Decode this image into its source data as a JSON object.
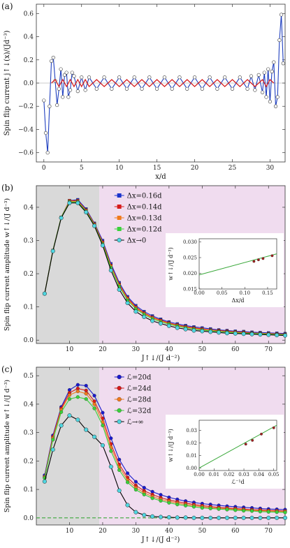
{
  "panel_labels": [
    "(a)",
    "(b)",
    "(c)"
  ],
  "chart_data": [
    {
      "type": "line",
      "panel": "(a)",
      "xlabel": "x/d",
      "ylabel": "Spin flip current  j↑↓(x)/(Jd⁻³)",
      "xlim": [
        -1,
        32
      ],
      "ylim": [
        -0.68,
        0.68
      ],
      "xticks": [
        0,
        5,
        10,
        15,
        20,
        25,
        30
      ],
      "yticks": [
        -0.6,
        -0.4,
        -0.2,
        0.0,
        0.2,
        0.4,
        0.6
      ],
      "ytick_labels": [
        "−0.6",
        "−0.4",
        "−0.2",
        "0.0",
        "0.2",
        "0.4",
        "0.6"
      ],
      "series": [
        {
          "color": "#1f3fbf",
          "marker": "open-circle",
          "x": [
            0.0,
            0.25,
            0.5,
            0.75,
            1.0,
            1.25,
            1.5,
            1.75,
            2.0,
            2.25,
            2.5,
            2.75,
            3.0,
            3.25,
            3.5,
            3.75,
            4.0,
            4.5,
            5.0,
            5.5,
            6.0,
            7.0,
            8.0,
            9.0,
            10.0,
            11.0,
            12.0,
            13.0,
            14.0,
            15.0,
            16.0,
            17.0,
            18.0,
            19.0,
            20.0,
            21.0,
            22.0,
            23.0,
            24.0,
            25.0,
            26.0,
            27.0,
            27.5,
            28.0,
            28.5,
            29.0,
            29.25,
            29.5,
            29.75,
            30.0,
            30.25,
            30.5,
            30.75,
            31.0,
            31.25,
            31.5,
            31.75
          ],
          "y": [
            -0.15,
            -0.43,
            -0.6,
            -0.2,
            0.19,
            0.22,
            0.02,
            -0.19,
            -0.05,
            0.12,
            -0.12,
            0.07,
            0.09,
            -0.12,
            -0.06,
            0.09,
            0.06,
            -0.07,
            0.05,
            -0.06,
            0.05,
            -0.05,
            0.05,
            -0.05,
            0.05,
            -0.05,
            0.05,
            -0.05,
            0.05,
            -0.05,
            0.05,
            -0.05,
            0.05,
            -0.05,
            0.05,
            -0.05,
            0.05,
            -0.05,
            0.05,
            -0.05,
            0.05,
            -0.05,
            0.06,
            -0.06,
            0.07,
            -0.08,
            0.09,
            -0.12,
            0.12,
            -0.16,
            0.1,
            0.18,
            -0.2,
            -0.12,
            0.37,
            0.59,
            0.17
          ]
        },
        {
          "color": "#d62020",
          "marker": "none",
          "x": [
            1.0,
            1.5,
            2.0,
            2.5,
            3.0,
            3.5,
            4.0,
            4.5,
            5.0,
            5.5,
            6.0,
            7.0,
            8.0,
            9.0,
            10.0,
            11.0,
            12.0,
            13.0,
            14.0,
            15.0,
            16.0,
            17.0,
            18.0,
            19.0,
            20.0,
            21.0,
            22.0,
            23.0,
            24.0,
            25.0,
            26.0,
            27.0,
            28.0,
            29.0,
            29.5,
            30.0,
            30.5
          ],
          "y": [
            0.0,
            0.03,
            -0.03,
            0.03,
            -0.03,
            0.03,
            -0.03,
            0.03,
            -0.03,
            0.03,
            -0.03,
            0.03,
            -0.03,
            0.03,
            -0.03,
            0.03,
            -0.03,
            0.03,
            -0.03,
            0.03,
            -0.03,
            0.03,
            -0.03,
            0.03,
            -0.03,
            0.03,
            -0.03,
            0.03,
            -0.03,
            0.03,
            -0.03,
            0.03,
            -0.03,
            0.03,
            -0.03,
            0.03,
            0.0
          ]
        }
      ]
    },
    {
      "type": "line",
      "panel": "(b)",
      "xlabel": "J↑↓/(J d⁻²)",
      "ylabel": "Spin flip current amplitude  w↑↓/(J d⁻³)",
      "xlim": [
        0,
        75
      ],
      "ylim": [
        -0.01,
        0.465
      ],
      "xticks": [
        10,
        20,
        30,
        40,
        50,
        60,
        70
      ],
      "yticks": [
        0.0,
        0.1,
        0.2,
        0.3,
        0.4
      ],
      "ytick_labels": [
        "0.0",
        "0.1",
        "0.2",
        "0.3",
        "0.4"
      ],
      "shading": [
        {
          "x": [
            0,
            19
          ],
          "color": "#d9d9d9"
        },
        {
          "x": [
            19,
            75
          ],
          "color": "#f0dcef"
        }
      ],
      "legend": "top-center",
      "x": [
        2.5,
        5,
        7.5,
        10,
        12.5,
        15,
        17.5,
        20,
        22.5,
        25,
        27.5,
        30,
        32.5,
        35,
        37.5,
        40,
        42.5,
        45,
        47.5,
        50,
        52.5,
        55,
        57.5,
        60,
        62.5,
        65,
        67.5,
        70,
        72.5,
        75
      ],
      "series": [
        {
          "name": "Δx=0.16d",
          "color": "#1a33cc",
          "marker": "square",
          "values": [
            0.14,
            0.27,
            0.37,
            0.42,
            0.423,
            0.395,
            0.352,
            0.3,
            0.23,
            0.173,
            0.131,
            0.104,
            0.086,
            0.073,
            0.063,
            0.055,
            0.049,
            0.044,
            0.04,
            0.037,
            0.034,
            0.031,
            0.029,
            0.027,
            0.026,
            0.024,
            0.023,
            0.022,
            0.021,
            0.02
          ]
        },
        {
          "name": "Δx=0.14d",
          "color": "#d61a1a",
          "marker": "square",
          "values": [
            0.14,
            0.27,
            0.37,
            0.42,
            0.42,
            0.392,
            0.35,
            0.295,
            0.225,
            0.168,
            0.127,
            0.1,
            0.082,
            0.069,
            0.06,
            0.052,
            0.046,
            0.041,
            0.037,
            0.034,
            0.031,
            0.029,
            0.027,
            0.025,
            0.024,
            0.022,
            0.021,
            0.02,
            0.019,
            0.018
          ]
        },
        {
          "name": "Δx=0.13d",
          "color": "#f07a1a",
          "marker": "square",
          "values": [
            0.14,
            0.27,
            0.37,
            0.418,
            0.418,
            0.39,
            0.348,
            0.292,
            0.222,
            0.165,
            0.124,
            0.097,
            0.08,
            0.067,
            0.058,
            0.05,
            0.044,
            0.039,
            0.035,
            0.032,
            0.03,
            0.027,
            0.025,
            0.024,
            0.022,
            0.021,
            0.02,
            0.019,
            0.018,
            0.017
          ]
        },
        {
          "name": "Δx=0.12d",
          "color": "#3ad13a",
          "marker": "square",
          "values": [
            0.14,
            0.27,
            0.37,
            0.416,
            0.416,
            0.388,
            0.346,
            0.289,
            0.218,
            0.161,
            0.12,
            0.094,
            0.077,
            0.064,
            0.055,
            0.048,
            0.042,
            0.037,
            0.033,
            0.03,
            0.028,
            0.026,
            0.024,
            0.022,
            0.021,
            0.02,
            0.019,
            0.018,
            0.017,
            0.016
          ]
        },
        {
          "name": "Δx→0",
          "color": "#000000",
          "marker": "cyan-circle",
          "values": [
            0.14,
            0.268,
            0.368,
            0.413,
            0.413,
            0.385,
            0.344,
            0.285,
            0.21,
            0.152,
            0.112,
            0.086,
            0.07,
            0.058,
            0.05,
            0.043,
            0.037,
            0.033,
            0.029,
            0.027,
            0.025,
            0.023,
            0.021,
            0.02,
            0.019,
            0.018,
            0.017,
            0.016,
            0.015,
            0.014
          ]
        }
      ],
      "inset": {
        "type": "scatter",
        "xlabel": "Δx/d",
        "ylabel": "w↑↓/(J d⁻³)",
        "xlim": [
          0.0,
          0.17
        ],
        "ylim": [
          0.015,
          0.031
        ],
        "xticks": [
          0.0,
          0.05,
          0.1,
          0.15
        ],
        "xtick_labels": [
          "0.00",
          "0.05",
          "0.10",
          "0.15"
        ],
        "yticks": [
          0.015,
          0.02,
          0.025,
          0.03
        ],
        "ytick_labels": [
          "0.015",
          "0.020",
          "0.025",
          "0.030"
        ],
        "points": {
          "x": [
            0.12,
            0.13,
            0.14,
            0.16
          ],
          "y": [
            0.0238,
            0.0243,
            0.0247,
            0.0256
          ]
        },
        "fit": {
          "x": [
            0.0,
            0.17
          ],
          "y": [
            0.0195,
            0.0262
          ],
          "color": "#3aa83a"
        }
      }
    },
    {
      "type": "line",
      "panel": "(c)",
      "xlabel": "J↑↓/(J d⁻²)",
      "ylabel": "Spin flip current amplitude  w↑↓/(J d⁻³)",
      "xlim": [
        0,
        75
      ],
      "ylim": [
        -0.025,
        0.53
      ],
      "xticks": [
        10,
        20,
        30,
        40,
        50,
        60,
        70
      ],
      "yticks": [
        0.0,
        0.1,
        0.2,
        0.3,
        0.4,
        0.5
      ],
      "ytick_labels": [
        "0.0",
        "0.1",
        "0.2",
        "0.3",
        "0.4",
        "0.5"
      ],
      "shading": [
        {
          "x": [
            0,
            19
          ],
          "color": "#d9d9d9"
        },
        {
          "x": [
            19,
            75
          ],
          "color": "#f0dcef"
        }
      ],
      "legend": "top-center",
      "reference_line": {
        "y": 0.0,
        "color": "#3aa83a",
        "style": "dashed"
      },
      "x": [
        2.5,
        5,
        7.5,
        10,
        12.5,
        15,
        17.5,
        20,
        22.5,
        25,
        27.5,
        30,
        32.5,
        35,
        37.5,
        40,
        42.5,
        45,
        47.5,
        50,
        52.5,
        55,
        57.5,
        60,
        62.5,
        65,
        67.5,
        70,
        72.5,
        75
      ],
      "series": [
        {
          "name": "ℒ=20d",
          "color": "#1a1acc",
          "marker": "circle",
          "values": [
            0.15,
            0.29,
            0.39,
            0.45,
            0.468,
            0.465,
            0.43,
            0.37,
            0.28,
            0.205,
            0.157,
            0.127,
            0.106,
            0.092,
            0.081,
            0.072,
            0.065,
            0.059,
            0.054,
            0.05,
            0.047,
            0.044,
            0.041,
            0.039,
            0.037,
            0.035,
            0.033,
            0.031,
            0.03,
            0.029
          ]
        },
        {
          "name": "ℒ=24d",
          "color": "#d61a1a",
          "marker": "circle",
          "values": [
            0.145,
            0.285,
            0.385,
            0.44,
            0.455,
            0.448,
            0.41,
            0.35,
            0.26,
            0.188,
            0.142,
            0.114,
            0.095,
            0.082,
            0.071,
            0.063,
            0.057,
            0.052,
            0.047,
            0.043,
            0.04,
            0.037,
            0.035,
            0.033,
            0.031,
            0.029,
            0.028,
            0.026,
            0.025,
            0.024
          ]
        },
        {
          "name": "ℒ=28d",
          "color": "#f07a1a",
          "marker": "circle",
          "values": [
            0.143,
            0.28,
            0.38,
            0.432,
            0.445,
            0.437,
            0.4,
            0.337,
            0.248,
            0.178,
            0.133,
            0.106,
            0.088,
            0.075,
            0.065,
            0.058,
            0.052,
            0.047,
            0.043,
            0.039,
            0.036,
            0.034,
            0.032,
            0.03,
            0.028,
            0.026,
            0.025,
            0.024,
            0.023,
            0.022
          ]
        },
        {
          "name": "ℒ=32d",
          "color": "#3ad13a",
          "marker": "circle",
          "values": [
            0.14,
            0.275,
            0.372,
            0.418,
            0.425,
            0.418,
            0.385,
            0.325,
            0.235,
            0.168,
            0.125,
            0.099,
            0.082,
            0.069,
            0.06,
            0.053,
            0.047,
            0.043,
            0.039,
            0.035,
            0.033,
            0.031,
            0.029,
            0.027,
            0.025,
            0.024,
            0.022,
            0.021,
            0.02,
            0.019
          ]
        },
        {
          "name": "ℒ→∞",
          "color": "#000000",
          "marker": "cyan-circle",
          "values": [
            0.128,
            0.24,
            0.325,
            0.36,
            0.345,
            0.31,
            0.285,
            0.255,
            0.18,
            0.096,
            0.045,
            0.02,
            0.01,
            0.005,
            0.003,
            0.002,
            0.001,
            0.001,
            0.0,
            0.0,
            0.0,
            0.0,
            0.0,
            0.0,
            0.0,
            0.0,
            0.0,
            0.0,
            0.0,
            0.0
          ]
        }
      ],
      "inset": {
        "type": "scatter",
        "xlabel": "ℒ⁻¹d",
        "ylabel": "w↑↓/(J d⁻³)",
        "xlim": [
          0.0,
          0.052
        ],
        "ylim": [
          -0.002,
          0.038
        ],
        "xticks": [
          0.0,
          0.01,
          0.02,
          0.03,
          0.04,
          0.05
        ],
        "xtick_labels": [
          "0.00",
          "0.01",
          "0.02",
          "0.03",
          "0.04",
          "0.05"
        ],
        "yticks": [
          0.0,
          0.01,
          0.02,
          0.03
        ],
        "ytick_labels": [
          "0.00",
          "0.01",
          "0.02",
          "0.03"
        ],
        "points": {
          "x": [
            0.03125,
            0.0357,
            0.0417,
            0.05
          ],
          "y": [
            0.019,
            0.022,
            0.027,
            0.032
          ]
        },
        "fit": {
          "x": [
            0.0,
            0.052
          ],
          "y": [
            0.0,
            0.034
          ],
          "color": "#3aa83a"
        }
      }
    }
  ]
}
